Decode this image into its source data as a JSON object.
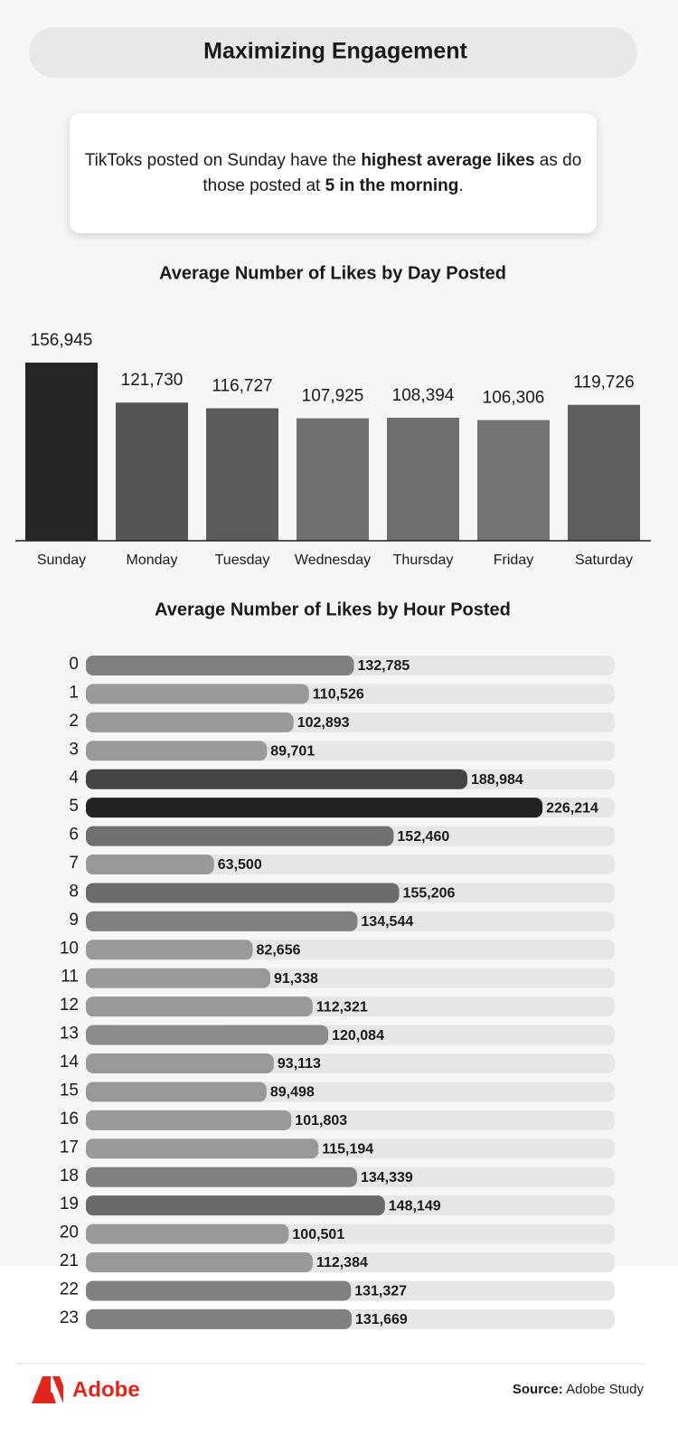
{
  "header": {
    "title": "Maximizing Engagement"
  },
  "callout": {
    "lines": [
      [
        {
          "text": "TikToks posted on Sunday have the ",
          "bold": false
        },
        {
          "text": "highest average likes",
          "bold": true
        },
        {
          "text": " as do",
          "bold": false
        }
      ],
      [
        {
          "text": "those posted at ",
          "bold": false
        },
        {
          "text": "5 in the morning",
          "bold": true
        },
        {
          "text": ".",
          "bold": false
        }
      ]
    ]
  },
  "chart_data": [
    {
      "type": "bar",
      "title": "Average Number of Likes by Day Posted",
      "categories": [
        "Sunday",
        "Monday",
        "Tuesday",
        "Wednesday",
        "Thursday",
        "Friday",
        "Saturday"
      ],
      "values": [
        156945,
        121730,
        116727,
        107925,
        108394,
        106306,
        119726
      ],
      "value_labels": [
        "156,945",
        "121,730",
        "116,727",
        "107,925",
        "108,394",
        "106,306",
        "119,726"
      ],
      "colors": [
        "#262626",
        "#555555",
        "#5c5c5c",
        "#707070",
        "#6e6e6e",
        "#747474",
        "#5e5e5e"
      ],
      "ylim": [
        0,
        190000
      ]
    },
    {
      "type": "hbar",
      "title": "Average Number of Likes by Hour Posted",
      "categories": [
        "0",
        "1",
        "2",
        "3",
        "4",
        "5",
        "6",
        "7",
        "8",
        "9",
        "10",
        "11",
        "12",
        "13",
        "14",
        "15",
        "16",
        "17",
        "18",
        "19",
        "20",
        "21",
        "22",
        "23"
      ],
      "values": [
        132785,
        110526,
        102893,
        89701,
        188984,
        226214,
        152460,
        63500,
        155206,
        134544,
        82656,
        91338,
        112321,
        120084,
        93113,
        89498,
        101803,
        115194,
        134339,
        148149,
        100501,
        112384,
        131327,
        131669
      ],
      "value_labels": [
        "132,785",
        "110,526",
        "102,893",
        "89,701",
        "188,984",
        "226,214",
        "152,460",
        "63,500",
        "155,206",
        "134,544",
        "82,656",
        "91,338",
        "112,321",
        "120,084",
        "93,113",
        "89,498",
        "101,803",
        "115,194",
        "134,339",
        "148,149",
        "100,501",
        "112,384",
        "131,327",
        "131,669"
      ],
      "colors": [
        "#808080",
        "#999999",
        "#999999",
        "#999999",
        "#444444",
        "#222222",
        "#707070",
        "#999999",
        "#6c6c6c",
        "#808080",
        "#999999",
        "#999999",
        "#999999",
        "#8c8c8c",
        "#999999",
        "#999999",
        "#999999",
        "#999999",
        "#808080",
        "#6a6a6a",
        "#999999",
        "#999999",
        "#808080",
        "#808080"
      ],
      "xlim": [
        0,
        262000
      ]
    }
  ],
  "footer": {
    "logo": "Adobe",
    "source_label": "Source:",
    "source": "Adobe Study"
  }
}
